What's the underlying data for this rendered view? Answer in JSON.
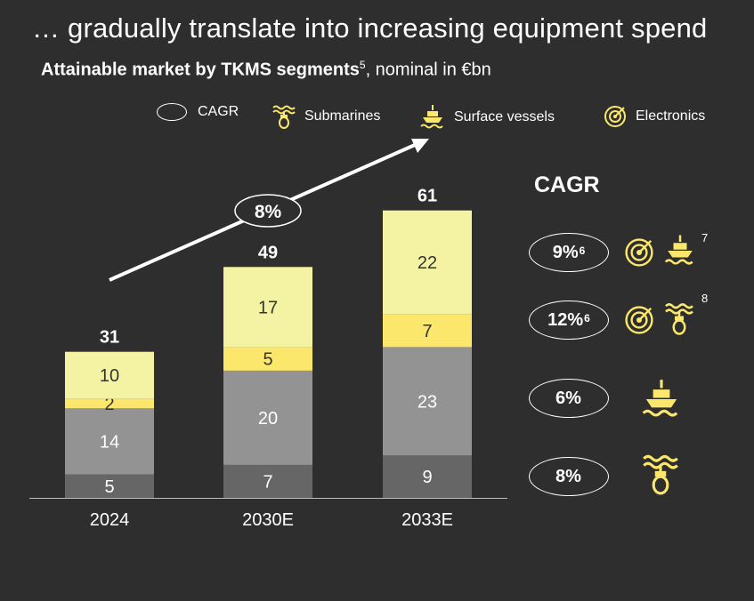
{
  "title": "… gradually translate into increasing equipment spend",
  "subtitle": {
    "bold": "Attainable market by TKMS segments",
    "footnote": "5",
    "rest": ", nominal in €bn"
  },
  "legend": {
    "cagr": "CAGR",
    "submarines": "Submarines",
    "surface_vessels": "Surface vessels",
    "electronics": "Electronics"
  },
  "colors": {
    "background": "#2e2e2e",
    "light_yellow": "#f4f3a3",
    "yellow": "#fbe76b",
    "grey": "#939393",
    "dark_grey": "#666666",
    "icon_yellow": "#fbe76b"
  },
  "chart_data": {
    "type": "bar",
    "stacked": true,
    "categories": [
      "2024",
      "2030E",
      "2033E"
    ],
    "series": [
      {
        "values": [
          5,
          7,
          9
        ],
        "color": "#666666"
      },
      {
        "values": [
          14,
          20,
          23
        ],
        "color": "#939393"
      },
      {
        "values": [
          2,
          5,
          7
        ],
        "color": "#fbe76b"
      },
      {
        "values": [
          10,
          17,
          22
        ],
        "color": "#f4f3a3"
      }
    ],
    "totals": [
      31,
      49,
      61
    ],
    "cagr_arrow_label": "8%",
    "ylim": [
      0,
      61
    ]
  },
  "cagr_panel": {
    "title": "CAGR",
    "rows": [
      {
        "value": "9%",
        "sup": "6",
        "icons": [
          "electronics-icon",
          "surface-vessel-icon"
        ],
        "footnote": "7"
      },
      {
        "value": "12%",
        "sup": "6",
        "icons": [
          "electronics-icon",
          "submarine-icon"
        ],
        "footnote": "8"
      },
      {
        "value": "6%",
        "sup": "",
        "icons": [
          "surface-vessel-icon"
        ],
        "footnote": ""
      },
      {
        "value": "8%",
        "sup": "",
        "icons": [
          "submarine-icon"
        ],
        "footnote": ""
      }
    ]
  }
}
